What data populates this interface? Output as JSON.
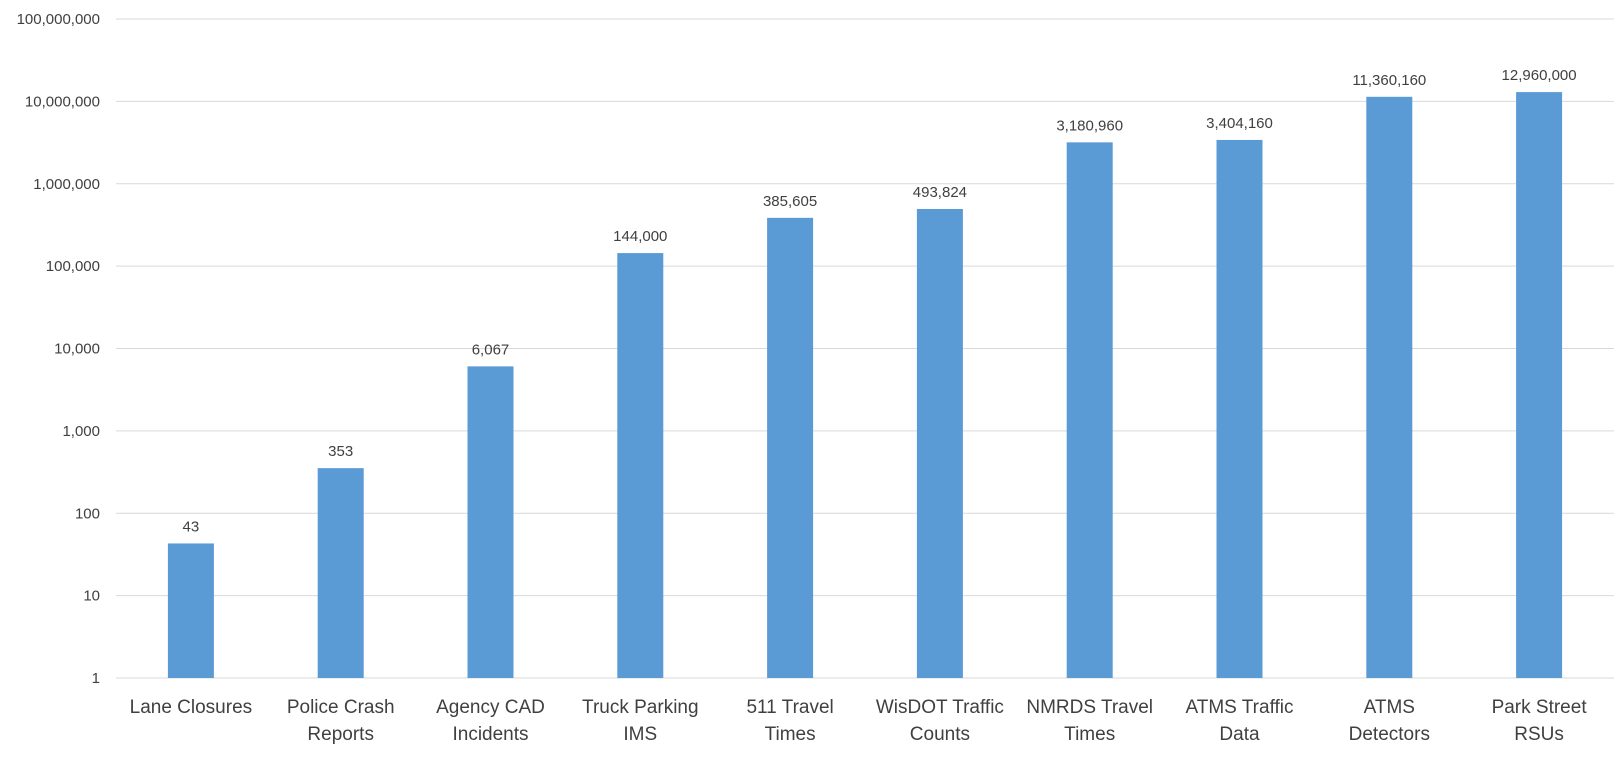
{
  "chart_data": {
    "type": "bar",
    "title": "",
    "xlabel": "",
    "ylabel": "",
    "scale": "log10",
    "ylim": [
      1,
      100000000
    ],
    "grid": true,
    "legend": "none",
    "bar_color": "#5b9bd5",
    "grid_color": "#d9d9d9",
    "categories": [
      [
        "Lane Closures"
      ],
      [
        "Police Crash",
        "Reports"
      ],
      [
        "Agency CAD",
        "Incidents"
      ],
      [
        "Truck Parking",
        "IMS"
      ],
      [
        "511 Travel",
        "Times"
      ],
      [
        "WisDOT Traffic",
        "Counts"
      ],
      [
        "NMRDS Travel",
        "Times"
      ],
      [
        "ATMS Traffic",
        "Data"
      ],
      [
        "ATMS",
        "Detectors"
      ],
      [
        "Park Street",
        "RSUs"
      ]
    ],
    "values": [
      43,
      353,
      6067,
      144000,
      385605,
      493824,
      3180960,
      3404160,
      11360160,
      12960000
    ],
    "data_labels": [
      "43",
      "353",
      "6,067",
      "144,000",
      "385,605",
      "493,824",
      "3,180,960",
      "3,404,160",
      "11,360,160",
      "12,960,000"
    ],
    "y_ticks": [
      {
        "value": 1,
        "label": "1"
      },
      {
        "value": 10,
        "label": "10"
      },
      {
        "value": 100,
        "label": "100"
      },
      {
        "value": 1000,
        "label": "1,000"
      },
      {
        "value": 10000,
        "label": "10,000"
      },
      {
        "value": 100000,
        "label": "100,000"
      },
      {
        "value": 1000000,
        "label": "1,000,000"
      },
      {
        "value": 10000000,
        "label": "10,000,000"
      },
      {
        "value": 100000000,
        "label": "100,000,000"
      }
    ]
  }
}
